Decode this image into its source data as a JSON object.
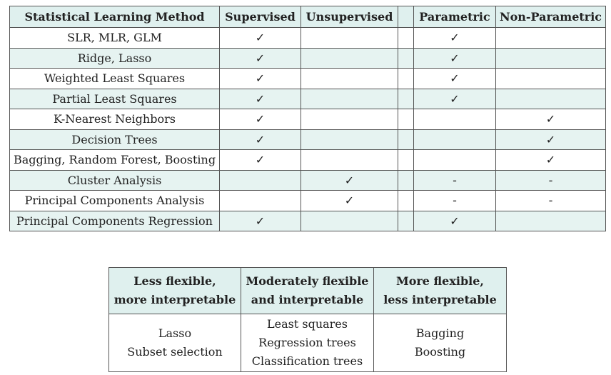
{
  "methods_table": {
    "headers": [
      "Statistical Learning Method",
      "Supervised",
      "Unsupervised",
      "",
      "Parametric",
      "Non-Parametric"
    ],
    "check_mark": "✓",
    "dash_mark": "-",
    "rows": [
      {
        "method": "SLR, MLR, GLM",
        "supervised": "✓",
        "unsupervised": "",
        "parametric": "✓",
        "nonparametric": ""
      },
      {
        "method": "Ridge, Lasso",
        "supervised": "✓",
        "unsupervised": "",
        "parametric": "✓",
        "nonparametric": ""
      },
      {
        "method": "Weighted Least Squares",
        "supervised": "✓",
        "unsupervised": "",
        "parametric": "✓",
        "nonparametric": ""
      },
      {
        "method": "Partial Least Squares",
        "supervised": "✓",
        "unsupervised": "",
        "parametric": "✓",
        "nonparametric": ""
      },
      {
        "method": "K-Nearest Neighbors",
        "supervised": "✓",
        "unsupervised": "",
        "parametric": "",
        "nonparametric": "✓"
      },
      {
        "method": "Decision Trees",
        "supervised": "✓",
        "unsupervised": "",
        "parametric": "",
        "nonparametric": "✓"
      },
      {
        "method": "Bagging, Random Forest, Boosting",
        "supervised": "✓",
        "unsupervised": "",
        "parametric": "",
        "nonparametric": "✓"
      },
      {
        "method": "Cluster Analysis",
        "supervised": "",
        "unsupervised": "✓",
        "parametric": "-",
        "nonparametric": "-"
      },
      {
        "method": "Principal Components Analysis",
        "supervised": "",
        "unsupervised": "✓",
        "parametric": "-",
        "nonparametric": "-"
      },
      {
        "method": "Principal Components Regression",
        "supervised": "✓",
        "unsupervised": "",
        "parametric": "✓",
        "nonparametric": ""
      }
    ]
  },
  "flexibility_table": {
    "headers": [
      [
        "Less flexible,",
        "more interpretable"
      ],
      [
        "Moderately flexible",
        "and interpretable"
      ],
      [
        "More flexible,",
        "less interpretable"
      ]
    ],
    "cells": [
      [
        "Lasso",
        "Subset selection"
      ],
      [
        "Least squares",
        "Regression trees",
        "Classification trees"
      ],
      [
        "Bagging",
        "Boosting"
      ]
    ]
  }
}
